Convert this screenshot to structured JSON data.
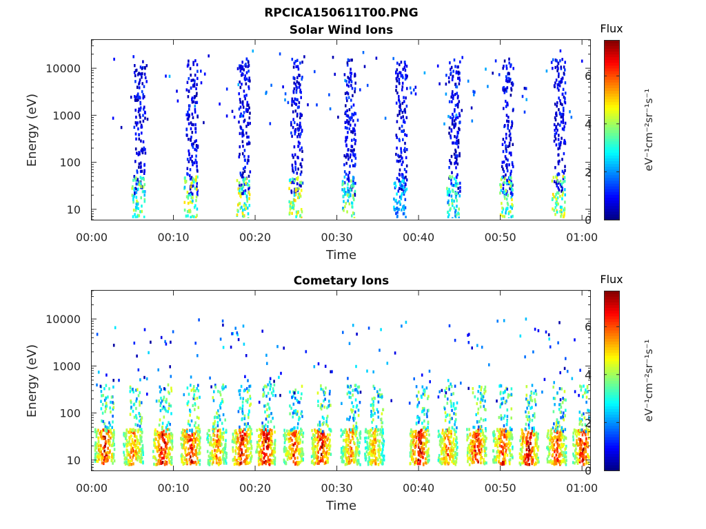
{
  "figure_title": "RPCICA150611T00.PNG",
  "chart_data": [
    {
      "type": "heatmap",
      "title": "Solar Wind Ions",
      "xlabel": "Time",
      "ylabel": "Energy (eV)",
      "y_scale": "log",
      "x_range_minutes": [
        0,
        61
      ],
      "ylim": [
        6,
        40000
      ],
      "x_ticks": [
        "00:00",
        "00:10",
        "00:20",
        "00:30",
        "00:40",
        "00:50",
        "01:00"
      ],
      "x_tick_values_minutes": [
        0,
        10,
        20,
        30,
        40,
        50,
        60
      ],
      "y_ticks": [
        "10",
        "100",
        "1000",
        "10000"
      ],
      "y_tick_values": [
        10,
        100,
        1000,
        10000
      ],
      "colorbar": {
        "title": "Flux",
        "label": "eV⁻¹cm⁻²sr⁻¹s⁻¹",
        "ticks": [
          "0",
          "2",
          "4",
          "6"
        ],
        "tick_values": [
          0,
          2,
          4,
          6
        ],
        "range": [
          0,
          7.5
        ],
        "colormap": "jet"
      },
      "grid": false,
      "bursts": [
        {
          "t": 5.8,
          "flux_low_band": 4.0
        },
        {
          "t": 12.2,
          "flux_low_band": 4.6
        },
        {
          "t": 18.6,
          "flux_low_band": 4.6
        },
        {
          "t": 25.0,
          "flux_low_band": 4.8
        },
        {
          "t": 31.5,
          "flux_low_band": 4.0
        },
        {
          "t": 37.8,
          "flux_low_band": 2.6
        },
        {
          "t": 44.3,
          "flux_low_band": 3.6
        },
        {
          "t": 50.8,
          "flux_low_band": 4.4
        },
        {
          "t": 57.2,
          "flux_low_band": 4.6
        }
      ]
    },
    {
      "type": "heatmap",
      "title": "Cometary Ions",
      "xlabel": "Time",
      "ylabel": "Energy (eV)",
      "y_scale": "log",
      "x_range_minutes": [
        0,
        61
      ],
      "ylim": [
        6,
        40000
      ],
      "x_ticks": [
        "00:00",
        "00:10",
        "00:20",
        "00:30",
        "00:40",
        "00:50",
        "01:00"
      ],
      "x_tick_values_minutes": [
        0,
        10,
        20,
        30,
        40,
        50,
        60
      ],
      "y_ticks": [
        "10",
        "100",
        "1000",
        "10000"
      ],
      "y_tick_values": [
        10,
        100,
        1000,
        10000
      ],
      "colorbar": {
        "title": "Flux",
        "label": "eV⁻¹cm⁻²sr⁻¹s⁻¹",
        "ticks": [
          "0",
          "2",
          "4",
          "6"
        ],
        "tick_values": [
          0,
          2,
          4,
          6
        ],
        "range": [
          0,
          7.5
        ],
        "colormap": "jet"
      },
      "grid": false,
      "bursts": [
        {
          "t": 1.5,
          "flux_peak": 7.0
        },
        {
          "t": 5.0,
          "flux_peak": 6.2
        },
        {
          "t": 8.6,
          "flux_peak": 7.2
        },
        {
          "t": 12.0,
          "flux_peak": 7.0
        },
        {
          "t": 15.2,
          "flux_peak": 6.0
        },
        {
          "t": 18.3,
          "flux_peak": 7.0
        },
        {
          "t": 21.2,
          "flux_peak": 7.2
        },
        {
          "t": 24.6,
          "flux_peak": 6.5
        },
        {
          "t": 28.0,
          "flux_peak": 7.0
        },
        {
          "t": 31.6,
          "flux_peak": 6.0
        },
        {
          "t": 34.5,
          "flux_peak": 5.5
        },
        {
          "t": 40.0,
          "flux_peak": 7.2
        },
        {
          "t": 43.5,
          "flux_peak": 6.2
        },
        {
          "t": 47.0,
          "flux_peak": 7.0
        },
        {
          "t": 50.2,
          "flux_peak": 6.5
        },
        {
          "t": 53.4,
          "flux_peak": 7.2
        },
        {
          "t": 56.8,
          "flux_peak": 6.5
        },
        {
          "t": 60.0,
          "flux_peak": 7.0
        }
      ]
    }
  ]
}
